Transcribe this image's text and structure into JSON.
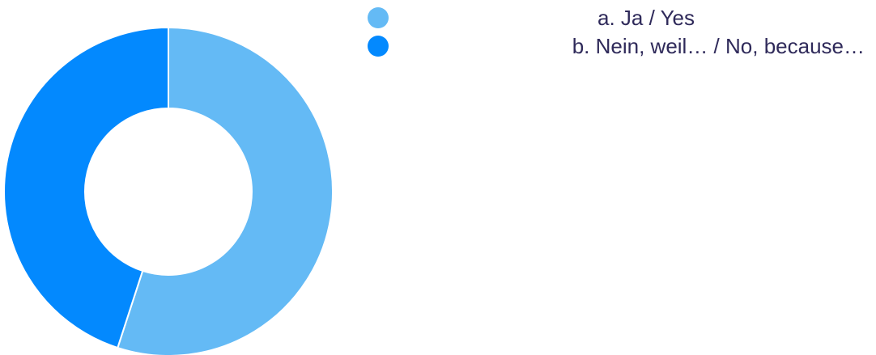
{
  "chart_data": {
    "type": "pie",
    "style": "donut",
    "title": "",
    "legend_position": "top-right",
    "series": [
      {
        "name": "a. Ja / Yes",
        "value": 55,
        "color": "#64baf5"
      },
      {
        "name": "b. Nein, weil… / No, because…",
        "value": 45,
        "color": "#0389fe"
      }
    ]
  }
}
